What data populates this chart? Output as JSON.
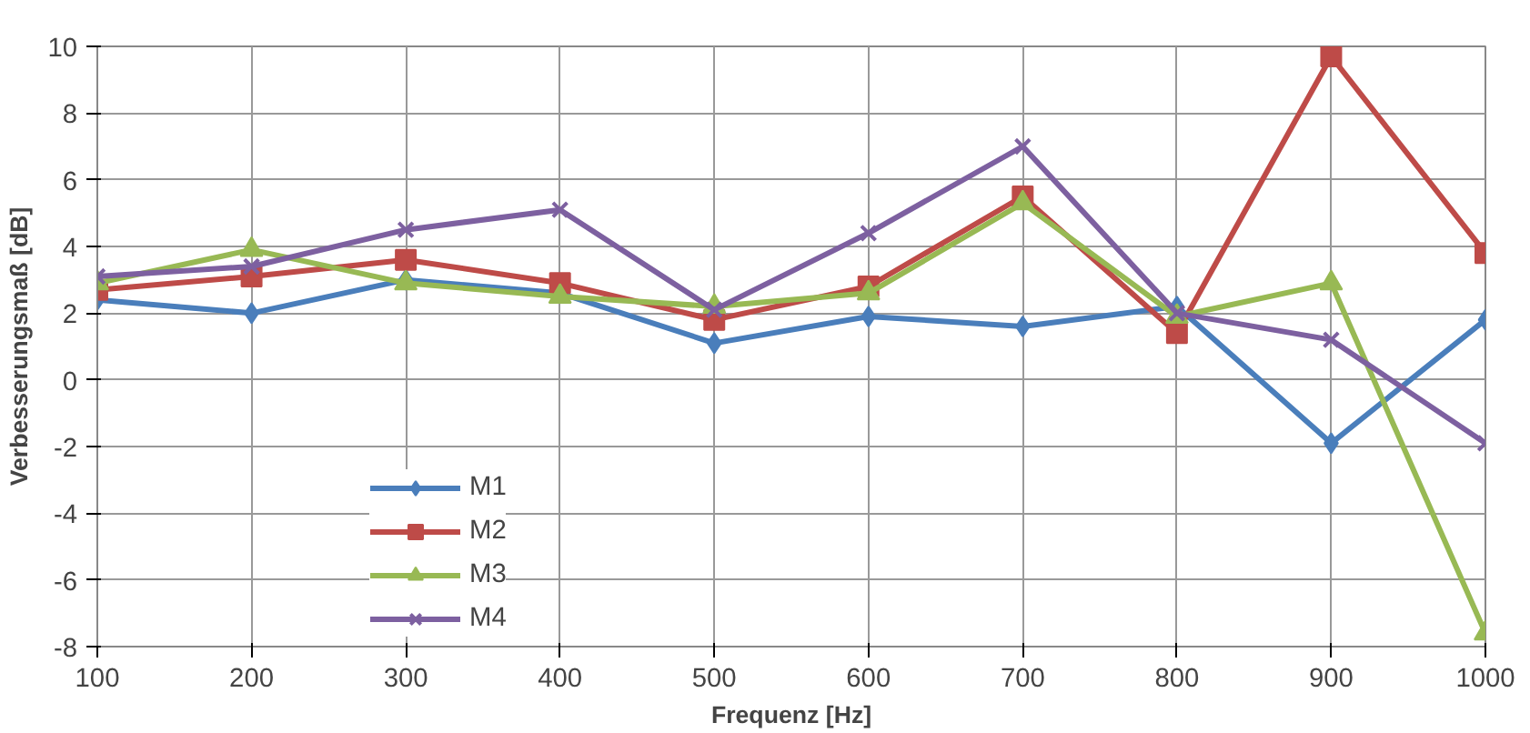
{
  "chart_data": {
    "type": "line",
    "xlabel": "Frequenz [Hz]",
    "ylabel": "Verbesserungsmaß [dB]",
    "x": [
      100,
      200,
      300,
      400,
      500,
      600,
      700,
      800,
      900,
      1000
    ],
    "xlim": [
      100,
      1000
    ],
    "xticks": [
      100,
      200,
      300,
      400,
      500,
      600,
      700,
      800,
      900,
      1000
    ],
    "ylim": [
      -8,
      10
    ],
    "yticks": [
      -8,
      -6,
      -4,
      -2,
      0,
      2,
      4,
      6,
      8,
      10
    ],
    "grid": true,
    "legend": "bottom left",
    "series": [
      {
        "name": "M1",
        "color": "#4a7ebb",
        "marker": "diamond",
        "values": [
          2.4,
          2.0,
          3.0,
          2.6,
          1.1,
          1.9,
          1.6,
          2.2,
          -1.9,
          1.8
        ]
      },
      {
        "name": "M2",
        "color": "#be4b48",
        "marker": "square",
        "values": [
          2.7,
          3.1,
          3.6,
          2.9,
          1.8,
          2.8,
          5.5,
          1.4,
          9.7,
          3.8
        ]
      },
      {
        "name": "M3",
        "color": "#98b954",
        "marker": "triangle",
        "values": [
          2.9,
          3.9,
          2.9,
          2.5,
          2.2,
          2.6,
          5.3,
          1.9,
          2.9,
          -7.6
        ]
      },
      {
        "name": "M4",
        "color": "#7d60a0",
        "marker": "cross",
        "values": [
          3.1,
          3.4,
          4.5,
          5.1,
          2.1,
          4.4,
          7.0,
          2.0,
          1.2,
          -1.9
        ]
      }
    ]
  }
}
